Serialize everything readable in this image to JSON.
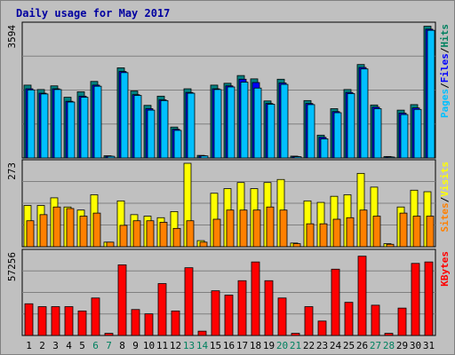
{
  "chart_data": [
    {
      "type": "bar",
      "title": "Daily usage for May 2017",
      "panel": "top",
      "ylabel": "3594",
      "legend": [
        {
          "label": "Pages",
          "color": "#00c0ff"
        },
        {
          "label": "Files",
          "color": "#0000ff"
        },
        {
          "label": "Hits",
          "color": "#00805f"
        }
      ],
      "ylim": [
        0,
        3594
      ],
      "categories": [
        "1",
        "2",
        "3",
        "4",
        "5",
        "6",
        "7",
        "8",
        "9",
        "10",
        "11",
        "12",
        "13",
        "14",
        "15",
        "16",
        "17",
        "18",
        "19",
        "20",
        "21",
        "22",
        "23",
        "24",
        "25",
        "26",
        "27",
        "28",
        "29",
        "30",
        "31"
      ],
      "weekend_days": [
        "6",
        "7",
        "13",
        "14",
        "20",
        "21",
        "27",
        "28"
      ],
      "series": [
        {
          "name": "Hits",
          "values": [
            1980,
            1860,
            1960,
            1650,
            1800,
            2080,
            60,
            2450,
            1820,
            1430,
            1680,
            840,
            1880,
            70,
            1980,
            2030,
            2240,
            2150,
            1550,
            2140,
            50,
            1560,
            620,
            1340,
            1860,
            2540,
            1440,
            40,
            1300,
            1450,
            3580
          ]
        },
        {
          "name": "Files",
          "values": [
            1880,
            1760,
            1880,
            1540,
            1680,
            1980,
            50,
            2350,
            1720,
            1340,
            1580,
            780,
            1780,
            60,
            1880,
            1960,
            2140,
            2050,
            1480,
            2040,
            40,
            1480,
            560,
            1260,
            1780,
            2460,
            1380,
            30,
            1220,
            1360,
            3500
          ]
        },
        {
          "name": "Pages",
          "values": [
            1850,
            1740,
            1860,
            1520,
            1650,
            1950,
            45,
            2320,
            1700,
            1300,
            1560,
            750,
            1760,
            55,
            1860,
            1930,
            2060,
            1900,
            1460,
            2000,
            35,
            1450,
            520,
            1230,
            1750,
            2420,
            1340,
            25,
            1180,
            1320,
            3470
          ]
        }
      ]
    },
    {
      "type": "bar",
      "panel": "middle",
      "ylabel": "273",
      "legend": [
        {
          "label": "Sites",
          "color": "#ff8000"
        },
        {
          "label": "Visits",
          "color": "#ffff00"
        }
      ],
      "ylim": [
        0,
        273
      ],
      "categories": [
        "1",
        "2",
        "3",
        "4",
        "5",
        "6",
        "7",
        "8",
        "9",
        "10",
        "11",
        "12",
        "13",
        "14",
        "15",
        "16",
        "17",
        "18",
        "19",
        "20",
        "21",
        "22",
        "23",
        "24",
        "25",
        "26",
        "27",
        "28",
        "29",
        "30",
        "31"
      ],
      "series": [
        {
          "name": "Visits",
          "values": [
            135,
            135,
            160,
            130,
            120,
            170,
            15,
            150,
            105,
            100,
            95,
            115,
            273,
            20,
            175,
            190,
            210,
            190,
            210,
            220,
            12,
            150,
            145,
            165,
            170,
            240,
            195,
            10,
            130,
            185,
            180
          ]
        },
        {
          "name": "Sites",
          "values": [
            85,
            105,
            130,
            125,
            100,
            110,
            15,
            70,
            85,
            85,
            80,
            60,
            85,
            15,
            90,
            120,
            120,
            120,
            130,
            120,
            10,
            75,
            75,
            90,
            95,
            120,
            100,
            8,
            110,
            100,
            100
          ]
        }
      ]
    },
    {
      "type": "bar",
      "panel": "bottom",
      "ylabel": "57256",
      "legend": [
        {
          "label": "KBytes",
          "color": "#ff0000"
        }
      ],
      "ylim": [
        0,
        57256
      ],
      "categories": [
        "1",
        "2",
        "3",
        "4",
        "5",
        "6",
        "7",
        "8",
        "9",
        "10",
        "11",
        "12",
        "13",
        "14",
        "15",
        "16",
        "17",
        "18",
        "19",
        "20",
        "21",
        "22",
        "23",
        "24",
        "25",
        "26",
        "27",
        "28",
        "29",
        "30",
        "31"
      ],
      "series": [
        {
          "name": "KBytes",
          "values": [
            22000,
            20000,
            20000,
            20000,
            17000,
            26000,
            1500,
            49000,
            18000,
            15000,
            36000,
            17000,
            47000,
            3000,
            31000,
            28000,
            38000,
            51000,
            38000,
            26000,
            1500,
            20000,
            10000,
            46000,
            23000,
            55000,
            21000,
            1500,
            19000,
            50000,
            51000
          ]
        }
      ]
    }
  ]
}
